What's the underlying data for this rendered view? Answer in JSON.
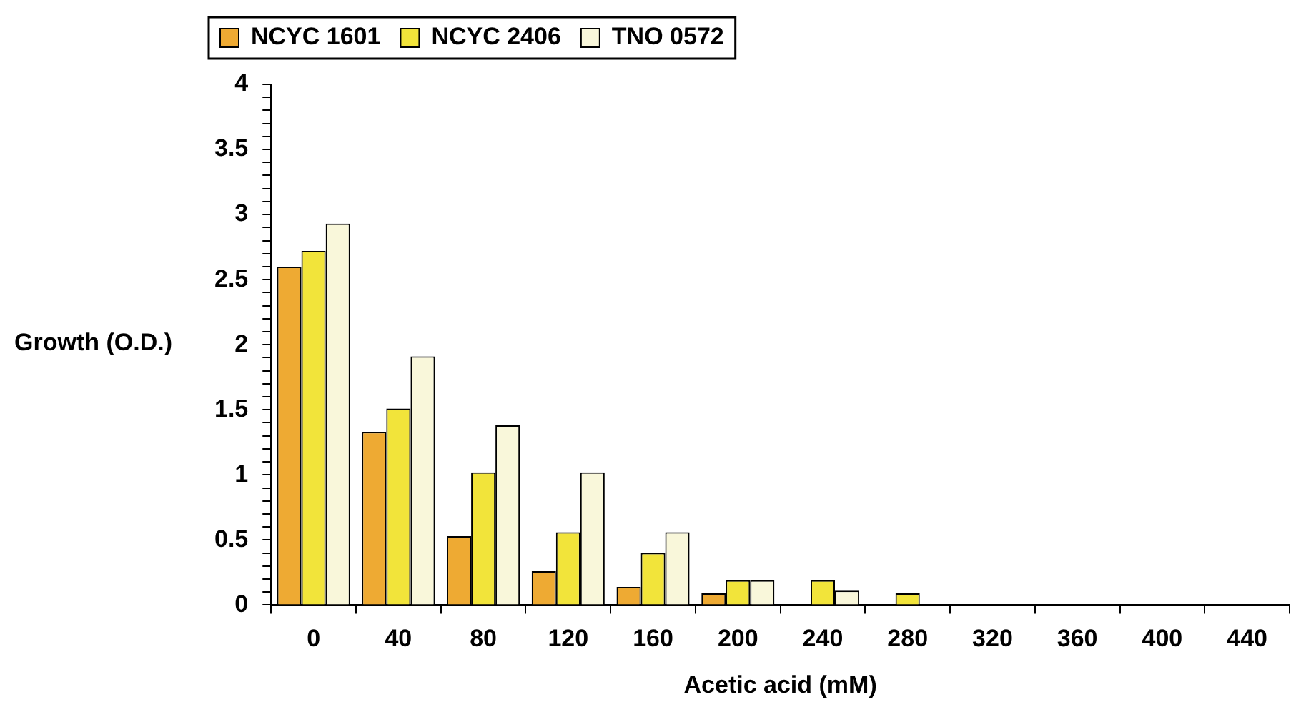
{
  "chart_data": {
    "type": "bar",
    "xlabel": "Acetic acid (mM)",
    "ylabel": "Growth (O.D.)",
    "categories": [
      "0",
      "40",
      "80",
      "120",
      "160",
      "200",
      "240",
      "280",
      "320",
      "360",
      "400",
      "440"
    ],
    "series": [
      {
        "name": "NCYC 1601",
        "color": "#eeaa33",
        "values": [
          2.6,
          1.33,
          0.53,
          0.26,
          0.14,
          0.09,
          0,
          0,
          0,
          0,
          0,
          0
        ]
      },
      {
        "name": "NCYC 2406",
        "color": "#f2e43a",
        "values": [
          2.72,
          1.51,
          1.02,
          0.56,
          0.4,
          0.19,
          0.19,
          0.09,
          0,
          0,
          0,
          0
        ]
      },
      {
        "name": "TNO 0572",
        "color": "#f9f7da",
        "values": [
          2.93,
          1.91,
          1.38,
          1.02,
          0.56,
          0.19,
          0.11,
          0,
          0,
          0,
          0,
          0
        ]
      }
    ],
    "ylim": [
      0,
      4
    ],
    "yticks": [
      0,
      {
        "value": 0.1,
        "label": null
      },
      {
        "value": 0.2,
        "label": null
      },
      {
        "value": 0.3,
        "label": null
      },
      {
        "value": 0.4,
        "label": null
      },
      0.5,
      {
        "value": 0.6,
        "label": null
      },
      {
        "value": 0.7,
        "label": null
      },
      {
        "value": 0.8,
        "label": null
      },
      {
        "value": 0.9,
        "label": null
      },
      1,
      {
        "value": 1.1,
        "label": null
      },
      {
        "value": 1.2,
        "label": null
      },
      {
        "value": 1.3,
        "label": null
      },
      {
        "value": 1.4,
        "label": null
      },
      1.5,
      {
        "value": 1.6,
        "label": null
      },
      {
        "value": 1.7,
        "label": null
      },
      {
        "value": 1.8,
        "label": null
      },
      {
        "value": 1.9,
        "label": null
      },
      2,
      {
        "value": 2.1,
        "label": null
      },
      {
        "value": 2.2,
        "label": null
      },
      {
        "value": 2.3,
        "label": null
      },
      {
        "value": 2.4,
        "label": null
      },
      2.5,
      {
        "value": 2.6,
        "label": null
      },
      {
        "value": 2.7,
        "label": null
      },
      {
        "value": 2.8,
        "label": null
      },
      {
        "value": 2.9,
        "label": null
      },
      3,
      {
        "value": 3.1,
        "label": null
      },
      {
        "value": 3.2,
        "label": null
      },
      {
        "value": 3.3,
        "label": null
      },
      {
        "value": 3.4,
        "label": null
      },
      3.5,
      {
        "value": 3.6,
        "label": null
      },
      {
        "value": 3.7,
        "label": null
      },
      {
        "value": 3.8,
        "label": null
      },
      {
        "value": 3.9,
        "label": null
      },
      4
    ],
    "grid": false,
    "legend": "top"
  }
}
